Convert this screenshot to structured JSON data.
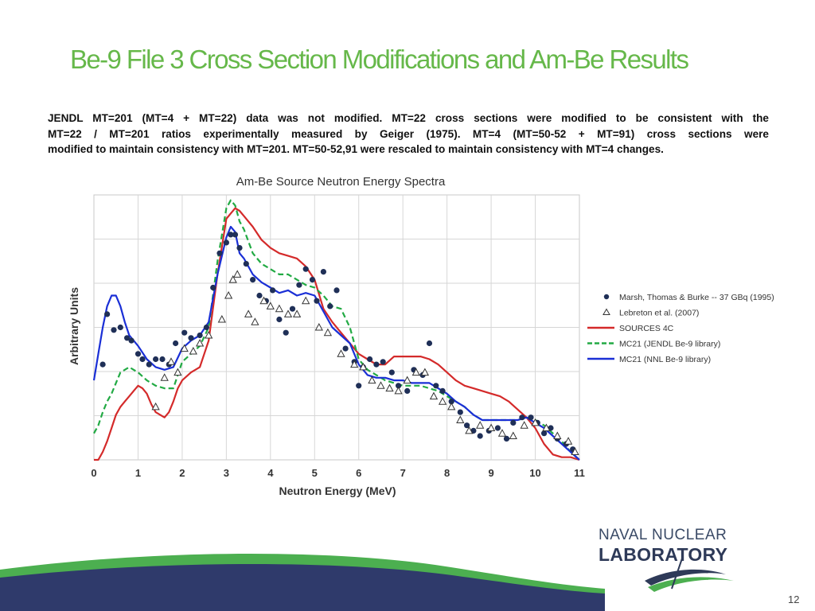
{
  "slide": {
    "title": "Be-9 File 3 Cross Section Modifications and Am-Be Results",
    "body_lines": [
      "JENDL MT=201 (MT=4 + MT=22) data was not modified.  MT=22 cross sections were modified to be consistent with the",
      "MT=22 / MT=201 ratios experimentally measured by Geiger (1975).  MT=4 (MT=50-52 + MT=91) cross sections were",
      "modified to maintain consistency with MT=201.  MT=50-52,91 were rescaled to maintain consistency with MT=4 changes."
    ],
    "page_number": "12"
  },
  "logo": {
    "line1": "NAVAL NUCLEAR",
    "line2": "LABORATORY"
  },
  "colors": {
    "title": "#66b84a",
    "sources4c": "#d42a2a",
    "mc21_jendl": "#22aa44",
    "mc21_nnl": "#1a2fd6",
    "markers": "#1f2f57",
    "footer_navy": "#2f3a6b",
    "footer_green": "#4caf50"
  },
  "chart_data": {
    "type": "scatter",
    "title": "Am-Be Source Neutron Energy Spectra",
    "xlabel": "Neutron Energy (MeV)",
    "ylabel": "Arbitrary Units",
    "xlim": [
      0,
      11
    ],
    "ylim": [
      0,
      1
    ],
    "x_ticks": [
      "0",
      "1",
      "2",
      "3",
      "4",
      "5",
      "6",
      "7",
      "8",
      "9",
      "10",
      "11"
    ],
    "y_tick_labels_shown": false,
    "grid": true,
    "legend_position": "right",
    "series": [
      {
        "name": "Marsh, Thomas & Burke -- 37 GBq (1995)",
        "kind": "markers-circle",
        "x": [
          0.2,
          0.3,
          0.45,
          0.6,
          0.75,
          0.85,
          1.0,
          1.1,
          1.25,
          1.4,
          1.55,
          1.7,
          1.85,
          2.05,
          2.2,
          2.4,
          2.55,
          2.7,
          2.85,
          3.0,
          3.1,
          3.2,
          3.3,
          3.45,
          3.6,
          3.75,
          3.9,
          4.05,
          4.2,
          4.35,
          4.5,
          4.65,
          4.8,
          4.95,
          5.05,
          5.2,
          5.35,
          5.5,
          5.7,
          5.9,
          6.0,
          6.1,
          6.25,
          6.4,
          6.55,
          6.75,
          6.9,
          7.1,
          7.25,
          7.45,
          7.6,
          7.75,
          7.9,
          8.1,
          8.3,
          8.45,
          8.6,
          8.75,
          8.95,
          9.15,
          9.35,
          9.5,
          9.7,
          9.9,
          10.05,
          10.2,
          10.35,
          10.5,
          10.7,
          10.85
        ],
        "y": [
          0.36,
          0.55,
          0.49,
          0.5,
          0.46,
          0.45,
          0.4,
          0.38,
          0.36,
          0.38,
          0.38,
          0.36,
          0.44,
          0.48,
          0.46,
          0.47,
          0.5,
          0.65,
          0.78,
          0.82,
          0.85,
          0.85,
          0.8,
          0.74,
          0.68,
          0.62,
          0.6,
          0.64,
          0.53,
          0.48,
          0.57,
          0.66,
          0.72,
          0.68,
          0.6,
          0.71,
          0.58,
          0.64,
          0.42,
          0.37,
          0.28,
          0.35,
          0.38,
          0.36,
          0.37,
          0.33,
          0.28,
          0.26,
          0.34,
          0.32,
          0.44,
          0.28,
          0.26,
          0.22,
          0.18,
          0.13,
          0.11,
          0.09,
          0.11,
          0.12,
          0.08,
          0.14,
          0.16,
          0.16,
          0.14,
          0.1,
          0.12,
          0.08,
          0.06,
          0.04
        ]
      },
      {
        "name": "Lebreton et al. (2007)",
        "kind": "markers-triangle",
        "x": [
          1.4,
          1.6,
          1.75,
          1.9,
          2.05,
          2.25,
          2.4,
          2.6,
          2.9,
          3.05,
          3.15,
          3.25,
          3.5,
          3.65,
          3.85,
          4.0,
          4.2,
          4.4,
          4.6,
          4.8,
          5.1,
          5.3,
          5.6,
          5.9,
          6.1,
          6.3,
          6.5,
          6.7,
          6.9,
          7.1,
          7.3,
          7.5,
          7.7,
          7.9,
          8.1,
          8.3,
          8.5,
          8.75,
          9.0,
          9.25,
          9.5,
          9.75,
          10.0,
          10.25,
          10.5,
          10.75,
          10.9
        ],
        "y": [
          0.2,
          0.31,
          0.37,
          0.33,
          0.42,
          0.41,
          0.44,
          0.47,
          0.53,
          0.62,
          0.68,
          0.7,
          0.55,
          0.52,
          0.6,
          0.58,
          0.57,
          0.55,
          0.55,
          0.6,
          0.5,
          0.48,
          0.4,
          0.36,
          0.35,
          0.3,
          0.28,
          0.27,
          0.26,
          0.3,
          0.33,
          0.33,
          0.24,
          0.22,
          0.2,
          0.15,
          0.11,
          0.13,
          0.12,
          0.1,
          0.09,
          0.13,
          0.14,
          0.12,
          0.09,
          0.07,
          0.03
        ]
      },
      {
        "name": "SOURCES 4C",
        "kind": "line",
        "x": [
          0,
          0.1,
          0.2,
          0.3,
          0.4,
          0.5,
          0.6,
          0.7,
          0.8,
          0.9,
          1.0,
          1.1,
          1.2,
          1.3,
          1.4,
          1.5,
          1.6,
          1.7,
          1.8,
          1.9,
          2.0,
          2.2,
          2.4,
          2.6,
          2.8,
          3.0,
          3.1,
          3.2,
          3.3,
          3.4,
          3.6,
          3.8,
          4.0,
          4.2,
          4.4,
          4.6,
          4.8,
          5.0,
          5.2,
          5.4,
          5.6,
          5.8,
          6.0,
          6.2,
          6.4,
          6.6,
          6.8,
          7.0,
          7.2,
          7.4,
          7.6,
          7.8,
          8.0,
          8.2,
          8.4,
          8.6,
          8.8,
          9.0,
          9.2,
          9.4,
          9.6,
          9.8,
          10.0,
          10.2,
          10.4,
          10.6,
          10.8,
          11.0
        ],
        "y": [
          0.0,
          0.0,
          0.03,
          0.07,
          0.12,
          0.17,
          0.2,
          0.22,
          0.24,
          0.26,
          0.28,
          0.27,
          0.25,
          0.21,
          0.18,
          0.17,
          0.16,
          0.18,
          0.22,
          0.27,
          0.3,
          0.33,
          0.35,
          0.45,
          0.7,
          0.91,
          0.93,
          0.95,
          0.94,
          0.92,
          0.88,
          0.83,
          0.8,
          0.78,
          0.77,
          0.76,
          0.73,
          0.68,
          0.57,
          0.52,
          0.48,
          0.44,
          0.4,
          0.38,
          0.36,
          0.36,
          0.39,
          0.39,
          0.39,
          0.39,
          0.38,
          0.36,
          0.33,
          0.3,
          0.28,
          0.27,
          0.26,
          0.25,
          0.24,
          0.22,
          0.19,
          0.16,
          0.12,
          0.06,
          0.02,
          0.01,
          0.01,
          0.0
        ]
      },
      {
        "name": "MC21 (JENDL Be-9 library)",
        "kind": "line-dashed",
        "x": [
          0,
          0.1,
          0.2,
          0.3,
          0.4,
          0.5,
          0.6,
          0.7,
          0.8,
          0.9,
          1.0,
          1.2,
          1.4,
          1.6,
          1.8,
          2.0,
          2.2,
          2.4,
          2.6,
          2.8,
          3.0,
          3.1,
          3.2,
          3.3,
          3.4,
          3.6,
          3.8,
          4.0,
          4.2,
          4.4,
          4.6,
          4.8,
          5.0,
          5.2,
          5.4,
          5.6,
          5.8,
          6.0,
          6.2,
          6.4,
          6.6,
          6.8,
          7.0,
          7.2,
          7.4,
          7.6,
          7.8,
          8.0,
          8.2,
          8.4,
          8.6,
          8.8,
          9.0,
          9.2,
          9.4,
          9.6,
          9.8,
          10.0,
          10.2,
          10.4,
          10.6,
          10.8,
          11.0
        ],
        "y": [
          0.1,
          0.13,
          0.18,
          0.22,
          0.25,
          0.29,
          0.33,
          0.34,
          0.35,
          0.34,
          0.33,
          0.3,
          0.28,
          0.27,
          0.27,
          0.37,
          0.4,
          0.43,
          0.5,
          0.75,
          0.95,
          0.98,
          0.96,
          0.9,
          0.87,
          0.78,
          0.74,
          0.72,
          0.7,
          0.7,
          0.68,
          0.66,
          0.65,
          0.62,
          0.58,
          0.57,
          0.5,
          0.38,
          0.34,
          0.32,
          0.3,
          0.29,
          0.28,
          0.28,
          0.28,
          0.27,
          0.26,
          0.24,
          0.22,
          0.2,
          0.17,
          0.15,
          0.15,
          0.15,
          0.15,
          0.15,
          0.16,
          0.15,
          0.13,
          0.1,
          0.07,
          0.03,
          0.0
        ]
      },
      {
        "name": "MC21 (NNL Be-9 library)",
        "kind": "line",
        "x": [
          0,
          0.1,
          0.2,
          0.3,
          0.4,
          0.5,
          0.6,
          0.7,
          0.8,
          0.9,
          1.0,
          1.2,
          1.4,
          1.6,
          1.8,
          2.0,
          2.2,
          2.4,
          2.6,
          2.8,
          3.0,
          3.1,
          3.2,
          3.3,
          3.4,
          3.6,
          3.8,
          4.0,
          4.2,
          4.4,
          4.6,
          4.8,
          5.0,
          5.2,
          5.4,
          5.6,
          5.8,
          6.0,
          6.2,
          6.4,
          6.6,
          6.8,
          7.0,
          7.2,
          7.4,
          7.6,
          7.8,
          8.0,
          8.2,
          8.4,
          8.6,
          8.8,
          9.0,
          9.2,
          9.4,
          9.6,
          9.8,
          10.0,
          10.2,
          10.4,
          10.6,
          10.8,
          11.0
        ],
        "y": [
          0.3,
          0.4,
          0.5,
          0.58,
          0.62,
          0.62,
          0.58,
          0.52,
          0.47,
          0.45,
          0.43,
          0.38,
          0.35,
          0.34,
          0.35,
          0.42,
          0.45,
          0.47,
          0.52,
          0.7,
          0.84,
          0.88,
          0.86,
          0.78,
          0.76,
          0.7,
          0.67,
          0.65,
          0.63,
          0.64,
          0.62,
          0.63,
          0.62,
          0.56,
          0.5,
          0.47,
          0.44,
          0.36,
          0.32,
          0.31,
          0.31,
          0.3,
          0.3,
          0.29,
          0.29,
          0.29,
          0.27,
          0.25,
          0.22,
          0.2,
          0.17,
          0.15,
          0.15,
          0.15,
          0.15,
          0.15,
          0.16,
          0.14,
          0.12,
          0.09,
          0.06,
          0.03,
          0.0
        ]
      }
    ]
  }
}
